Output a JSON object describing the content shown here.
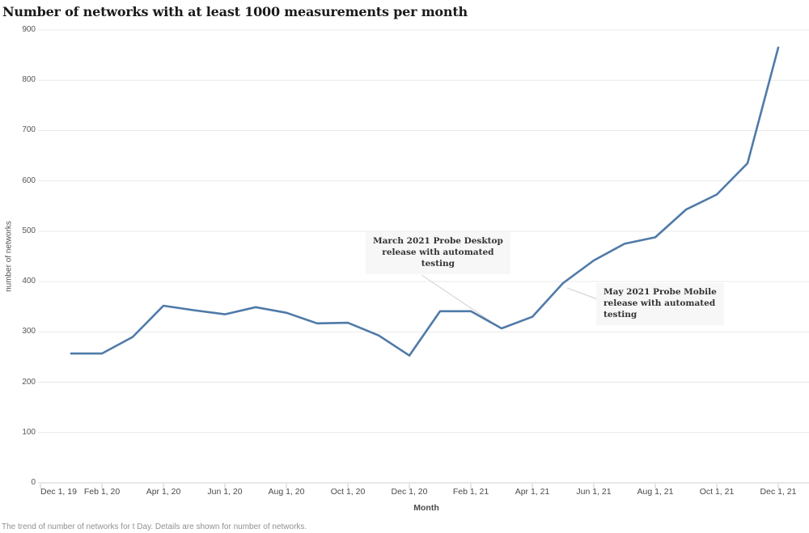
{
  "page": {
    "title": "Number of networks with at least 1000 measurements per month",
    "footer": "The trend of number of networks for t Day.  Details are shown for number of networks."
  },
  "chart_data": {
    "type": "line",
    "title": "Number of networks with at least 1000 measurements per month",
    "xlabel": "Month",
    "ylabel": "number of networks",
    "ylim": [
      0,
      900
    ],
    "ytick_step": 100,
    "ytick_labels": [
      "0",
      "100",
      "200",
      "300",
      "400",
      "500",
      "600",
      "700",
      "800",
      "900"
    ],
    "grid": "horizontal-only",
    "legend": "none",
    "line_color": "#4f7aa8",
    "gridline_color": "#e9e9e9",
    "axis_line_color": "#d2d2d2",
    "x_axis_tick_labels": [
      "Dec 1, 19",
      "Feb 1, 20",
      "Apr 1, 20",
      "Jun 1, 20",
      "Aug 1, 20",
      "Oct 1, 20",
      "Dec 1, 20",
      "Feb 1, 21",
      "Apr 1, 21",
      "Jun 1, 21",
      "Aug 1, 21",
      "Oct 1, 21",
      "Dec 1, 21"
    ],
    "x_axis_note": "axis starts at Dec 1, 2019 but the first plotted data point is Jan 2020",
    "series": [
      {
        "name": "number of networks",
        "x": [
          "Jan 2020",
          "Feb 2020",
          "Mar 2020",
          "Apr 2020",
          "May 2020",
          "Jun 2020",
          "Jul 2020",
          "Aug 2020",
          "Sep 2020",
          "Oct 2020",
          "Nov 2020",
          "Dec 2020",
          "Jan 2021",
          "Feb 2021",
          "Mar 2021",
          "Apr 2021",
          "May 2021",
          "Jun 2021",
          "Jul 2021",
          "Aug 2021",
          "Sep 2021",
          "Oct 2021",
          "Nov 2021",
          "Dec 2021"
        ],
        "values": [
          257,
          257,
          290,
          352,
          343,
          335,
          349,
          338,
          317,
          318,
          293,
          253,
          341,
          341,
          307,
          330,
          397,
          442,
          475,
          488,
          543,
          573,
          635,
          865
        ]
      }
    ],
    "annotations": [
      {
        "text": "March 2021 Probe Desktop\nrelease with automated\ntesting",
        "target_month": "Mar 2021",
        "target_value": 307
      },
      {
        "text": "May 2021 Probe Mobile\nrelease with automated\ntesting",
        "target_month": "May 2021",
        "target_value": 397
      }
    ]
  }
}
